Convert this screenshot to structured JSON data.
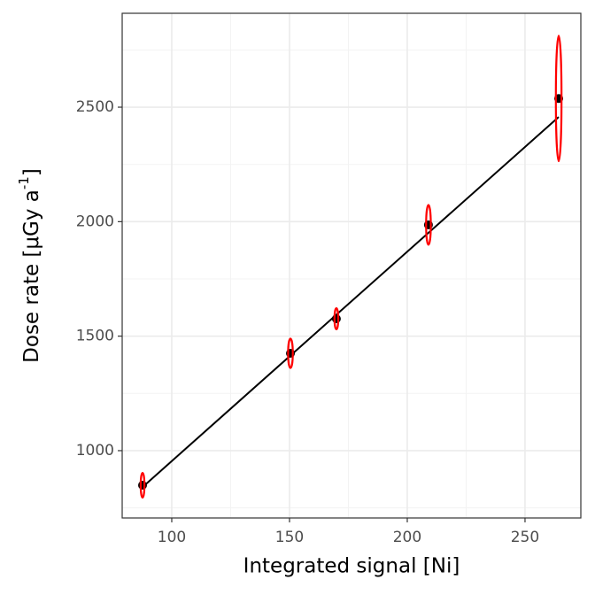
{
  "chart_data": {
    "type": "scatter",
    "x_label": "Integrated signal [Ni]",
    "y_label": {
      "text": "Dose rate [μGy a",
      "superscript": "-1",
      "suffix": "]"
    },
    "x": [
      87.6,
      150.4,
      169.9,
      209,
      264.3
    ],
    "x_err": [
      0.8,
      1,
      0.8,
      1,
      1.2
    ],
    "series": [
      {
        "values": [
          849,
          1425,
          1576,
          1986,
          2538
        ],
        "y_err": [
          54,
          64,
          46,
          87,
          274
        ],
        "color": "#000000",
        "err_color": "#ff0000"
      }
    ],
    "fit_line": {
      "x": [
        87.6,
        264.3
      ],
      "y": [
        841,
        2457
      ],
      "color": "#000000"
    },
    "xlim": [
      78.95,
      273.7
    ],
    "xticks": [
      100,
      150,
      200,
      250
    ],
    "ylim": [
      706,
      2910
    ],
    "yticks": [
      1000,
      1500,
      2000,
      2500
    ],
    "grid": true,
    "minor_grid": true
  }
}
